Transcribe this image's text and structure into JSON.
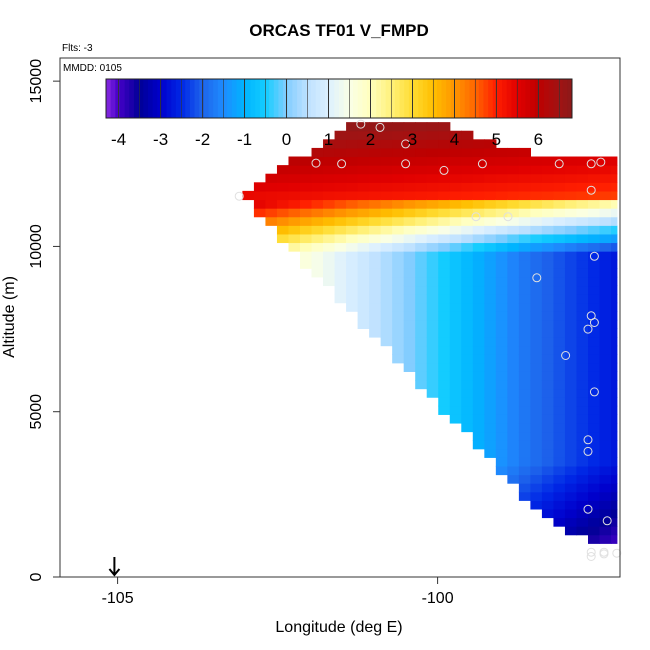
{
  "chart_data": {
    "type": "heatmap",
    "title": "ORCAS TF01 V_FMPD",
    "flights_label": "Flts: -3",
    "date_label": "MMDD: 0105",
    "xlabel": "Longitude (deg E)",
    "ylabel": "Altitude (m)",
    "xlim": [
      -105.9,
      -97.15
    ],
    "ylim": [
      0,
      15700
    ],
    "x_ticks": [
      -105,
      -100
    ],
    "y_ticks": [
      0,
      5000,
      10000,
      15000
    ],
    "x_tick_labels": [
      "-105",
      "-100"
    ],
    "y_tick_labels": [
      "0",
      "5000",
      "10000",
      "15000"
    ],
    "colorbar": {
      "min": -4.3,
      "max": 6.8,
      "ticks": [
        -4,
        -3,
        -2,
        -1,
        0,
        1,
        2,
        3,
        4,
        5,
        6
      ],
      "tick_labels": [
        "-4",
        "-3",
        "-2",
        "-1",
        "0",
        "1",
        "2",
        "3",
        "4",
        "5",
        "6"
      ]
    },
    "grid_cells": {
      "lon_min": -103.05,
      "lon_max": -97.2,
      "alt_min": 500,
      "alt_max": 13900,
      "lon_step": 0.18,
      "alt_step": 260
    },
    "wedge_boundary": {
      "upper": [
        [
          -103.05,
          11500
        ],
        [
          -102.5,
          12350
        ],
        [
          -101.6,
          13300
        ],
        [
          -101.2,
          13850
        ],
        [
          -100.05,
          13850
        ],
        [
          -99.0,
          13100
        ],
        [
          -98.5,
          12800
        ],
        [
          -97.2,
          12800
        ]
      ],
      "lower": [
        [
          -103.05,
          11500
        ],
        [
          -99.5,
          4200
        ],
        [
          -98.5,
          2100
        ],
        [
          -97.5,
          900
        ],
        [
          -97.2,
          900
        ]
      ]
    },
    "arrow_marker_lon": -105.05,
    "observations": [
      [
        -103.1,
        11520
      ],
      [
        -101.9,
        12520
      ],
      [
        -101.5,
        12500
      ],
      [
        -101.2,
        13700
      ],
      [
        -100.9,
        13600
      ],
      [
        -100.5,
        13100
      ],
      [
        -100.5,
        12500
      ],
      [
        -99.9,
        12300
      ],
      [
        -99.4,
        10900
      ],
      [
        -98.9,
        10900
      ],
      [
        -99.3,
        12500
      ],
      [
        -98.1,
        12500
      ],
      [
        -97.6,
        12500
      ],
      [
        -97.45,
        12550
      ],
      [
        -97.6,
        11700
      ],
      [
        -98.45,
        9050
      ],
      [
        -97.55,
        9700
      ],
      [
        -97.6,
        7900
      ],
      [
        -97.55,
        7700
      ],
      [
        -97.65,
        7500
      ],
      [
        -98.0,
        6700
      ],
      [
        -97.55,
        5600
      ],
      [
        -97.65,
        4150
      ],
      [
        -97.65,
        3800
      ],
      [
        -97.65,
        2050
      ],
      [
        -97.35,
        1700
      ],
      [
        -97.6,
        750
      ],
      [
        -97.4,
        750
      ],
      [
        -97.2,
        720
      ],
      [
        -97.6,
        620
      ],
      [
        -97.4,
        700
      ]
    ]
  }
}
